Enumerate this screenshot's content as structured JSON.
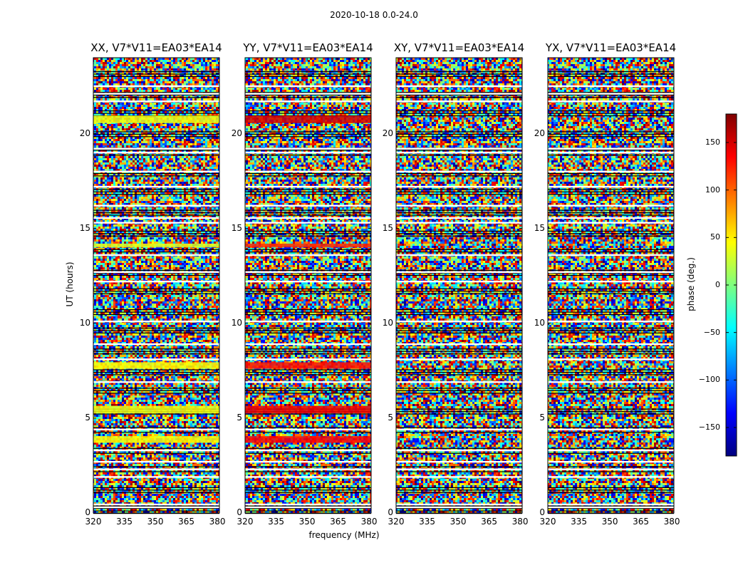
{
  "figure": {
    "suptitle": "2020-10-18 0.0-24.0"
  },
  "chart_data": {
    "type": "heatmap",
    "panels": [
      {
        "title": "XX, V7*V11=EA03*EA14",
        "mean_phase_bands": [
          {
            "t0": 20.55,
            "t1": 20.95,
            "phase": 40
          },
          {
            "t0": 7.6,
            "t1": 7.95,
            "phase": 45
          },
          {
            "t0": 5.25,
            "t1": 5.65,
            "phase": 40
          },
          {
            "t0": 3.7,
            "t1": 4.05,
            "phase": 45
          },
          {
            "t0": 14.0,
            "t1": 14.2,
            "phase": 35
          }
        ]
      },
      {
        "title": "YY, V7*V11=EA03*EA14",
        "mean_phase_bands": [
          {
            "t0": 20.55,
            "t1": 20.95,
            "phase": 150
          },
          {
            "t0": 7.6,
            "t1": 7.95,
            "phase": 130
          },
          {
            "t0": 5.25,
            "t1": 5.65,
            "phase": 140
          },
          {
            "t0": 3.7,
            "t1": 4.05,
            "phase": 135
          },
          {
            "t0": 14.0,
            "t1": 14.2,
            "phase": 120
          }
        ]
      },
      {
        "title": "XY, V7*V11=EA03*EA14",
        "mean_phase_bands": []
      },
      {
        "title": "YX, V7*V11=EA03*EA14",
        "mean_phase_bands": []
      }
    ],
    "xlabel": "frequency (MHz)",
    "ylabel": "UT (hours)",
    "xlim": [
      320,
      381
    ],
    "ylim": [
      0,
      24
    ],
    "xticks": [
      "320",
      "335",
      "350",
      "365",
      "380"
    ],
    "yticks": [
      "0",
      "5",
      "10",
      "15",
      "20"
    ],
    "flagged_hours": [
      0.3,
      0.45,
      1.9,
      2.3,
      2.7,
      3.3,
      4.4,
      6.9,
      8.1,
      8.9,
      10.1,
      12.2,
      12.7,
      13.6,
      15.3,
      15.55,
      16.2,
      17.2,
      18.0,
      19.0,
      19.2,
      21.7,
      22.1,
      22.5
    ],
    "colorbar": {
      "label": "phase (deg.)",
      "range": [
        -180,
        180
      ],
      "ticks": [
        "150",
        "100",
        "50",
        "0",
        "−50",
        "−100",
        "−150"
      ],
      "colormap": [
        "#00007f",
        "#0000ff",
        "#007fff",
        "#00ffff",
        "#7fff7f",
        "#ffff00",
        "#ff7f00",
        "#ff0000",
        "#7f0000"
      ]
    }
  }
}
